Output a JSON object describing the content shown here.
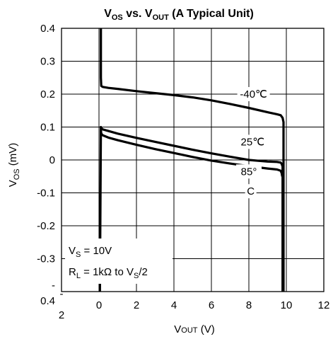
{
  "chart_data": {
    "type": "line",
    "title": {
      "main": "V",
      "sub1": "OS",
      "mid": " vs. V",
      "sub2": "OUT",
      "tail": " (A Typical Unit)"
    },
    "xlabel": {
      "main": "V",
      "sub": "OUT",
      "tail": " (V)"
    },
    "ylabel": {
      "main": "V",
      "sub": "OS",
      "tail": " (mV)"
    },
    "xlim": [
      -2,
      12
    ],
    "ylim": [
      -0.4,
      0.4
    ],
    "x_ticks": [
      {
        "value": 0,
        "label": "0"
      },
      {
        "value": 2,
        "label": "2"
      },
      {
        "value": 4,
        "label": "4"
      },
      {
        "value": 6,
        "label": "6"
      },
      {
        "value": 8,
        "label": "8"
      },
      {
        "value": 10,
        "label": "10"
      },
      {
        "value": 12,
        "label": "12"
      }
    ],
    "x_min_label": {
      "top": "-",
      "bottom": "2"
    },
    "y_ticks": [
      {
        "value": 0.4,
        "label": "0.4"
      },
      {
        "value": 0.3,
        "label": "0.3"
      },
      {
        "value": 0.2,
        "label": "0.2"
      },
      {
        "value": 0.1,
        "label": "0.1"
      },
      {
        "value": 0,
        "label": "0"
      },
      {
        "value": -0.1,
        "label": "-0.1"
      },
      {
        "value": -0.2,
        "label": "-0.2"
      },
      {
        "value": -0.3,
        "label": "-0.3"
      }
    ],
    "y_min_label": {
      "top": "-",
      "bottom": "0.4"
    },
    "grid": true,
    "series": [
      {
        "x": [
          0.1,
          0.1,
          0.12,
          0.2,
          0.5,
          1,
          2,
          3,
          4,
          5,
          6,
          7,
          8,
          9,
          9.5,
          9.7,
          9.8,
          9.85,
          9.85
        ],
        "y": [
          0.4,
          0.25,
          0.225,
          0.222,
          0.219,
          0.216,
          0.209,
          0.203,
          0.197,
          0.19,
          0.181,
          0.17,
          0.158,
          0.145,
          0.139,
          0.136,
          0.128,
          0.115,
          -0.4
        ]
      },
      {
        "x": [
          0.05,
          0.1,
          0.12,
          0.2,
          0.5,
          1,
          2,
          3,
          4,
          5,
          6,
          7,
          8,
          9,
          9.5,
          9.7,
          9.75,
          9.8,
          9.8
        ],
        "y": [
          -0.4,
          0.1,
          0.097,
          0.093,
          0.088,
          0.08,
          0.067,
          0.055,
          0.043,
          0.031,
          0.02,
          0.01,
          0.0,
          -0.005,
          -0.006,
          -0.008,
          -0.012,
          -0.02,
          -0.4
        ]
      },
      {
        "x": [
          0.1,
          0.12,
          0.2,
          0.5,
          1,
          2,
          3,
          4,
          5,
          6,
          7,
          8,
          9,
          9.5,
          9.7,
          9.75,
          9.78
        ],
        "y": [
          0.09,
          0.08,
          0.075,
          0.068,
          0.06,
          0.046,
          0.033,
          0.021,
          0.009,
          -0.002,
          -0.011,
          -0.019,
          -0.026,
          -0.029,
          -0.033,
          -0.04,
          -0.05
        ]
      }
    ],
    "labels": [
      {
        "text": "-40℃",
        "x": 8.25,
        "y": 0.2
      },
      {
        "text": "25℃",
        "x": 8.2,
        "y": 0.055
      },
      {
        "text": "85°",
        "x": 8.0,
        "y": -0.035
      },
      {
        "text": "C",
        "x": 8.1,
        "y": -0.095
      }
    ],
    "conditions": {
      "vs": {
        "main": "V",
        "sub": "S",
        "tail": " = 10V"
      },
      "rl": {
        "main": "R",
        "sub": "L",
        "mid": " = 1kΩ to V",
        "sub2": "S",
        "tail": "/2"
      }
    }
  }
}
